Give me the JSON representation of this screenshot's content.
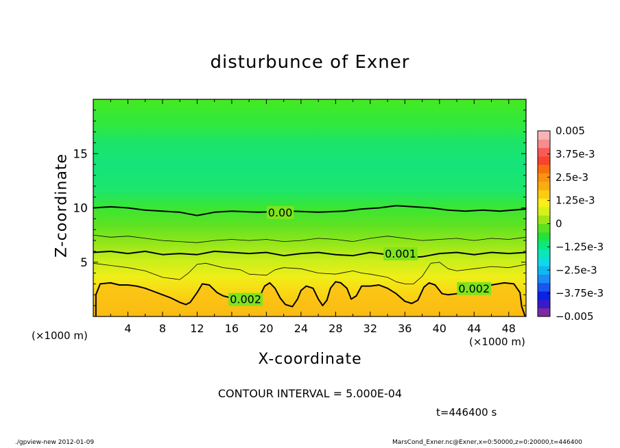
{
  "footer": {
    "left": "./gpview-new  2012-01-09",
    "right": "MarsCond_Exner.nc@Exner,x=0:50000,z=0:20000,t=446400"
  },
  "annotations": {
    "contour_interval": "CONTOUR INTERVAL = 5.000E-04",
    "time": "t=446400 s",
    "x_unit": "(×1000 m)"
  },
  "chart_data": {
    "type": "heatmap",
    "title": "disturbunce of Exner",
    "xlabel": "X-coordinate",
    "ylabel": "Z-coordinate",
    "xlim": [
      0,
      50
    ],
    "ylim": [
      0,
      20
    ],
    "x_ticks": [
      4,
      8,
      12,
      16,
      20,
      24,
      28,
      32,
      36,
      40,
      44,
      48
    ],
    "y_ticks": [
      5,
      10,
      15
    ],
    "colorbar": {
      "range": [
        -0.005,
        0.005
      ],
      "labels": [
        {
          "value": 0.005,
          "text": "0.005"
        },
        {
          "value": 0.00375,
          "text": "3.75e-3"
        },
        {
          "value": 0.0025,
          "text": "2.5e-3"
        },
        {
          "value": 0.00125,
          "text": "1.25e-3"
        },
        {
          "value": 0,
          "text": "0"
        },
        {
          "value": -0.00125,
          "text": "−1.25e-3"
        },
        {
          "value": -0.0025,
          "text": "−2.5e-3"
        },
        {
          "value": -0.00375,
          "text": "−3.75e-3"
        },
        {
          "value": -0.005,
          "text": "−0.005"
        }
      ],
      "colors": [
        "#7d2aa0",
        "#3a1ac8",
        "#0a22e6",
        "#1a55f0",
        "#1a8cf5",
        "#10b8f0",
        "#10d8e6",
        "#0ce6b4",
        "#0ae882",
        "#24e23c",
        "#5ce020",
        "#9ee61a",
        "#d8f01a",
        "#f8ee1a",
        "#fccc14",
        "#fcac10",
        "#f89410",
        "#f8700e",
        "#f8442a",
        "#f85a5a",
        "#f88c8c",
        "#f8b4b4"
      ]
    },
    "contour_labels": [
      {
        "text": "0.00",
        "x": 21.6,
        "z": 9.6
      },
      {
        "text": "0.001",
        "x": 35.5,
        "z": 5.8
      },
      {
        "text": "0.002",
        "x": 17.6,
        "z": 1.6
      },
      {
        "text": "0.002",
        "x": 44.0,
        "z": 2.6
      }
    ],
    "contours": [
      {
        "level": 0.0,
        "bold": true,
        "points": [
          [
            0,
            10.0
          ],
          [
            2,
            10.1
          ],
          [
            4,
            10.0
          ],
          [
            6,
            9.8
          ],
          [
            8,
            9.7
          ],
          [
            10,
            9.6
          ],
          [
            12,
            9.3
          ],
          [
            14,
            9.6
          ],
          [
            16,
            9.7
          ],
          [
            19,
            9.6
          ],
          [
            23,
            9.7
          ],
          [
            26,
            9.6
          ],
          [
            29,
            9.7
          ],
          [
            31,
            9.9
          ],
          [
            33,
            10.0
          ],
          [
            35,
            10.2
          ],
          [
            37,
            10.1
          ],
          [
            39,
            10.0
          ],
          [
            41,
            9.8
          ],
          [
            43,
            9.7
          ],
          [
            45,
            9.8
          ],
          [
            47,
            9.7
          ],
          [
            50,
            9.9
          ]
        ]
      },
      {
        "level": 0.0005,
        "bold": false,
        "points": [
          [
            0,
            7.5
          ],
          [
            2,
            7.3
          ],
          [
            4,
            7.4
          ],
          [
            6,
            7.2
          ],
          [
            8,
            7.0
          ],
          [
            10,
            6.9
          ],
          [
            12,
            6.8
          ],
          [
            14,
            7.0
          ],
          [
            16,
            7.1
          ],
          [
            18,
            7.0
          ],
          [
            20,
            7.1
          ],
          [
            22,
            6.9
          ],
          [
            24,
            7.0
          ],
          [
            26,
            7.2
          ],
          [
            28,
            7.1
          ],
          [
            30,
            6.9
          ],
          [
            32,
            7.2
          ],
          [
            34,
            7.4
          ],
          [
            36,
            7.2
          ],
          [
            38,
            7.0
          ],
          [
            40,
            7.1
          ],
          [
            42,
            7.2
          ],
          [
            44,
            7.0
          ],
          [
            46,
            7.2
          ],
          [
            48,
            7.1
          ],
          [
            50,
            7.3
          ]
        ]
      },
      {
        "level": 0.001,
        "bold": true,
        "points": [
          [
            0,
            5.9
          ],
          [
            2,
            6.0
          ],
          [
            4,
            5.8
          ],
          [
            6,
            6.0
          ],
          [
            8,
            5.7
          ],
          [
            10,
            5.8
          ],
          [
            12,
            5.7
          ],
          [
            14,
            6.0
          ],
          [
            16,
            5.9
          ],
          [
            18,
            5.8
          ],
          [
            20,
            5.9
          ],
          [
            22,
            5.6
          ],
          [
            24,
            5.8
          ],
          [
            26,
            5.9
          ],
          [
            28,
            5.7
          ],
          [
            30,
            5.6
          ],
          [
            32,
            5.9
          ],
          [
            34,
            5.7
          ],
          [
            36,
            5.4
          ],
          [
            38,
            5.5
          ],
          [
            40,
            5.8
          ],
          [
            42,
            5.9
          ],
          [
            44,
            5.7
          ],
          [
            46,
            5.9
          ],
          [
            48,
            5.8
          ],
          [
            50,
            5.9
          ]
        ]
      },
      {
        "level": 0.0015,
        "bold": false,
        "points": [
          [
            0,
            4.9
          ],
          [
            2,
            4.7
          ],
          [
            4,
            4.5
          ],
          [
            6,
            4.2
          ],
          [
            8,
            3.6
          ],
          [
            10,
            3.4
          ],
          [
            11,
            4.0
          ],
          [
            12,
            4.8
          ],
          [
            13,
            4.9
          ],
          [
            15,
            4.5
          ],
          [
            17,
            4.3
          ],
          [
            18,
            3.9
          ],
          [
            20,
            3.8
          ],
          [
            21,
            4.3
          ],
          [
            22,
            4.5
          ],
          [
            24,
            4.4
          ],
          [
            26,
            4.0
          ],
          [
            28,
            3.9
          ],
          [
            30,
            4.2
          ],
          [
            31,
            4.0
          ],
          [
            32,
            3.9
          ],
          [
            34,
            3.6
          ],
          [
            35,
            3.2
          ],
          [
            36,
            3.0
          ],
          [
            37,
            3.0
          ],
          [
            38,
            3.7
          ],
          [
            39,
            4.9
          ],
          [
            40,
            5.0
          ],
          [
            41,
            4.4
          ],
          [
            42,
            4.2
          ],
          [
            44,
            4.4
          ],
          [
            46,
            4.6
          ],
          [
            48,
            4.5
          ],
          [
            50,
            4.8
          ]
        ]
      },
      {
        "level": 0.002,
        "bold": true,
        "points": [
          [
            0.3,
            0.0
          ],
          [
            0.3,
            2.0
          ],
          [
            0.8,
            3.0
          ],
          [
            2,
            3.1
          ],
          [
            3,
            2.9
          ],
          [
            4,
            2.9
          ],
          [
            5,
            2.8
          ],
          [
            6,
            2.6
          ],
          [
            7,
            2.3
          ],
          [
            8,
            2.0
          ],
          [
            9,
            1.7
          ],
          [
            10,
            1.3
          ],
          [
            10.7,
            1.1
          ],
          [
            11.2,
            1.3
          ],
          [
            12,
            2.2
          ],
          [
            12.6,
            3.0
          ],
          [
            13.4,
            2.9
          ],
          [
            14.3,
            2.2
          ],
          [
            15,
            1.9
          ],
          [
            16,
            1.7
          ],
          [
            17.5,
            1.6
          ],
          [
            18.5,
            1.5
          ],
          [
            19.2,
            1.8
          ],
          [
            19.8,
            2.8
          ],
          [
            20.4,
            3.1
          ],
          [
            21,
            2.6
          ],
          [
            21.6,
            1.7
          ],
          [
            22.2,
            1.1
          ],
          [
            23,
            0.9
          ],
          [
            23.6,
            1.6
          ],
          [
            24,
            2.4
          ],
          [
            24.6,
            2.8
          ],
          [
            25.4,
            2.6
          ],
          [
            26,
            1.6
          ],
          [
            26.5,
            1.0
          ],
          [
            27,
            1.5
          ],
          [
            27.4,
            2.6
          ],
          [
            28,
            3.2
          ],
          [
            28.6,
            3.1
          ],
          [
            29.3,
            2.6
          ],
          [
            29.8,
            1.6
          ],
          [
            30.4,
            1.9
          ],
          [
            31,
            2.8
          ],
          [
            32,
            2.8
          ],
          [
            33,
            2.9
          ],
          [
            34,
            2.6
          ],
          [
            35,
            2.1
          ],
          [
            36,
            1.4
          ],
          [
            36.8,
            1.2
          ],
          [
            37.5,
            1.5
          ],
          [
            38.2,
            2.7
          ],
          [
            38.8,
            3.1
          ],
          [
            39.5,
            2.9
          ],
          [
            40.3,
            2.1
          ],
          [
            41,
            2.0
          ],
          [
            42,
            2.1
          ],
          [
            43,
            2.3
          ],
          [
            44,
            2.6
          ],
          [
            46,
            2.9
          ],
          [
            47.5,
            3.1
          ],
          [
            48.6,
            3.0
          ],
          [
            49.3,
            2.2
          ],
          [
            49.5,
            0.9
          ],
          [
            49.9,
            0.0
          ]
        ]
      }
    ]
  }
}
